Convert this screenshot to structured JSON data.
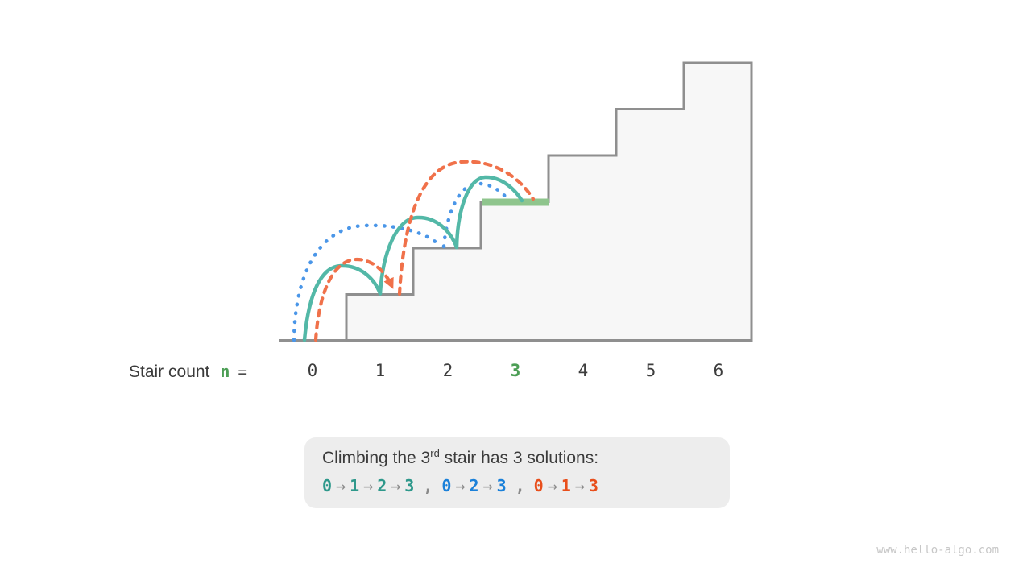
{
  "stair_row": {
    "label": "Stair count",
    "variable": "n",
    "equals": "=",
    "values": [
      "0",
      "1",
      "2",
      "3",
      "4",
      "5",
      "6"
    ],
    "highlighted_value": "3"
  },
  "caption": {
    "line1": {
      "prefix": "Climbing the 3",
      "superscript": "rd",
      "suffix": " stair has 3 solutions:"
    },
    "arrow": "→",
    "separator": ",",
    "solutions": [
      {
        "name": "solution-0-1-2-3",
        "steps": [
          "0",
          "1",
          "2",
          "3"
        ],
        "color": "#2e988b"
      },
      {
        "name": "solution-0-2-3",
        "steps": [
          "0",
          "2",
          "3"
        ],
        "color": "#1a80d9"
      },
      {
        "name": "solution-0-1-3",
        "steps": [
          "0",
          "1",
          "3"
        ],
        "color": "#e84e1b"
      }
    ]
  },
  "watermark": "www.hello-algo.com",
  "diagram": {
    "type": "staircase-jump-diagram",
    "steps": [
      0,
      1,
      2,
      3,
      4,
      5,
      6
    ],
    "highlighted_step": 3,
    "paths": [
      {
        "style": "teal-solid",
        "jumps": [
          [
            0,
            1
          ],
          [
            1,
            2
          ],
          [
            2,
            3
          ]
        ]
      },
      {
        "style": "blue-dotted",
        "jumps": [
          [
            0,
            2
          ],
          [
            2,
            3
          ]
        ]
      },
      {
        "style": "orange-dashed",
        "jumps": [
          [
            0,
            1
          ],
          [
            1,
            3
          ]
        ]
      }
    ]
  },
  "colors": {
    "teal_arc": "#53b8a7",
    "blue_arc": "#4a96e8",
    "orange_arc": "#f0714a",
    "green_highlight": "#8fc58d",
    "green_text": "#4c9e55",
    "stair_fill": "#f7f7f7",
    "stair_stroke": "#8f8f8f",
    "caption_bg": "#ededed",
    "text": "#3b3b3b",
    "arrow_gray": "#8a8a8a",
    "watermark_gray": "#c7c7c7"
  }
}
